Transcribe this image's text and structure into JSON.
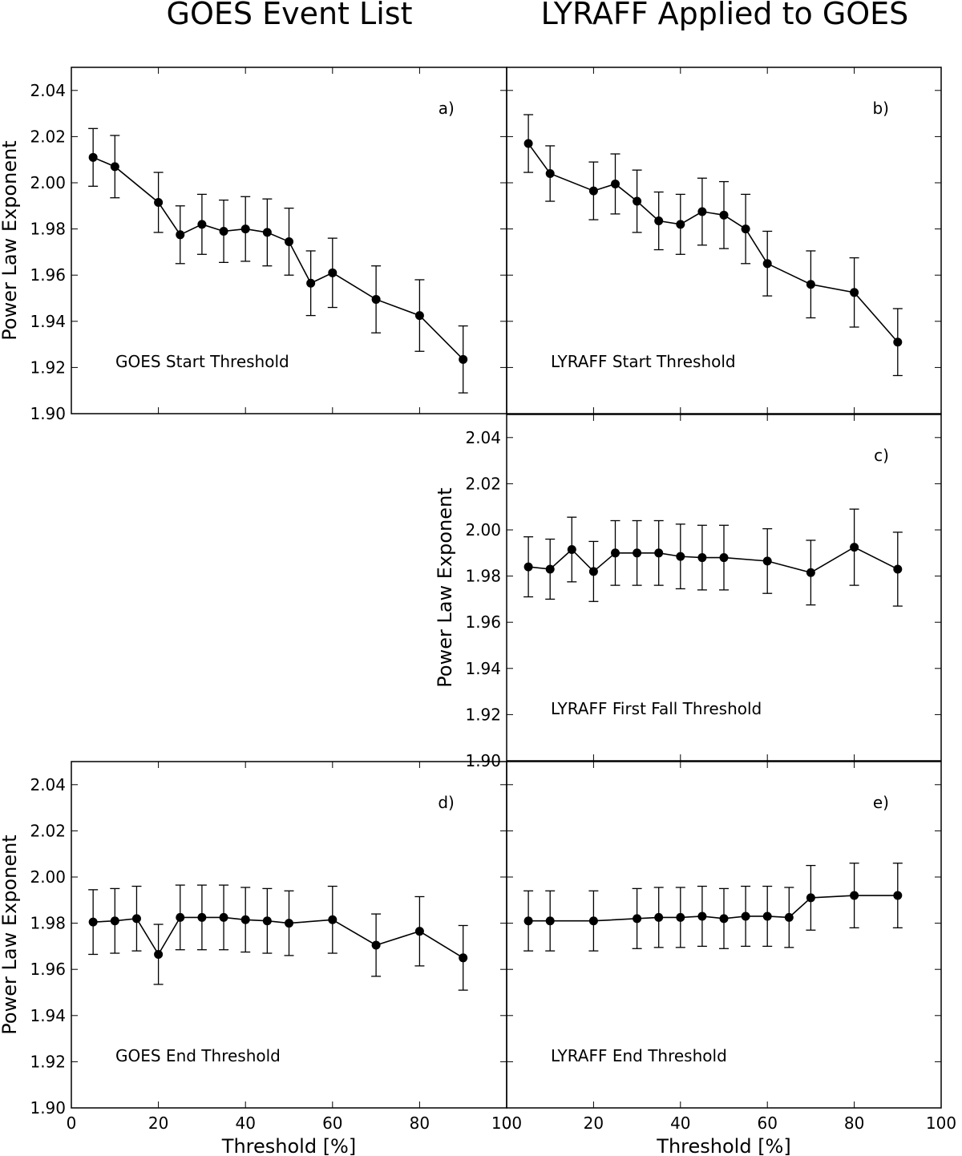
{
  "column_titles": [
    "GOES Event List",
    "LYRAFF Applied to GOES"
  ],
  "colors": {
    "line": "#000000",
    "background": "#ffffff"
  },
  "chart_data": [
    {
      "id": "a",
      "type": "line",
      "panel_label": "a)",
      "annotation": "GOES Start Threshold",
      "ylabel": "Power Law Exponent",
      "xlabel": "",
      "xlim": [
        0,
        100
      ],
      "ylim": [
        1.9,
        2.05
      ],
      "yticks": [
        "1.90",
        "1.92",
        "1.94",
        "1.96",
        "1.98",
        "2.00",
        "2.02",
        "2.04"
      ],
      "xticks": [],
      "x": [
        5,
        10,
        20,
        25,
        30,
        35,
        40,
        45,
        50,
        55,
        60,
        70,
        80,
        90
      ],
      "y": [
        2.011,
        2.007,
        1.9915,
        1.9775,
        1.982,
        1.979,
        1.98,
        1.9785,
        1.9745,
        1.9565,
        1.961,
        1.9495,
        1.9425,
        1.9235
      ],
      "yerr": [
        0.0125,
        0.0135,
        0.013,
        0.0125,
        0.013,
        0.0135,
        0.014,
        0.0145,
        0.0145,
        0.014,
        0.015,
        0.0145,
        0.0155,
        0.0145
      ]
    },
    {
      "id": "b",
      "type": "line",
      "panel_label": "b)",
      "annotation": "LYRAFF Start Threshold",
      "ylabel": "",
      "xlabel": "",
      "xlim": [
        0,
        100
      ],
      "ylim": [
        1.9,
        2.05
      ],
      "yticks": [],
      "xticks": [],
      "x": [
        5,
        10,
        20,
        25,
        30,
        35,
        40,
        45,
        50,
        55,
        60,
        70,
        80,
        90
      ],
      "y": [
        2.017,
        2.004,
        1.9965,
        1.9995,
        1.992,
        1.9835,
        1.982,
        1.9875,
        1.986,
        1.98,
        1.965,
        1.956,
        1.9525,
        1.931
      ],
      "yerr": [
        0.0125,
        0.012,
        0.0125,
        0.013,
        0.0135,
        0.0125,
        0.013,
        0.0145,
        0.0145,
        0.015,
        0.014,
        0.0145,
        0.015,
        0.0145
      ]
    },
    {
      "id": "c",
      "type": "line",
      "panel_label": "c)",
      "annotation": "LYRAFF First Fall Threshold",
      "ylabel": "Power Law Exponent",
      "xlabel": "",
      "xlim": [
        0,
        100
      ],
      "ylim": [
        1.9,
        2.05
      ],
      "yticks": [
        "1.90",
        "1.92",
        "1.94",
        "1.96",
        "1.98",
        "2.00",
        "2.02",
        "2.04"
      ],
      "xticks": [],
      "x": [
        5,
        10,
        15,
        20,
        25,
        30,
        35,
        40,
        45,
        50,
        60,
        70,
        80,
        90
      ],
      "y": [
        1.984,
        1.983,
        1.9915,
        1.982,
        1.99,
        1.99,
        1.99,
        1.9885,
        1.988,
        1.988,
        1.9865,
        1.9815,
        1.9925,
        1.983
      ],
      "yerr": [
        0.013,
        0.013,
        0.014,
        0.013,
        0.014,
        0.014,
        0.014,
        0.014,
        0.014,
        0.014,
        0.014,
        0.014,
        0.0165,
        0.016
      ]
    },
    {
      "id": "d",
      "type": "line",
      "panel_label": "d)",
      "annotation": "GOES End Threshold",
      "ylabel": "Power Law Exponent",
      "xlabel": "Threshold [%]",
      "xlim": [
        0,
        100
      ],
      "ylim": [
        1.9,
        2.05
      ],
      "yticks": [
        "1.90",
        "1.92",
        "1.94",
        "1.96",
        "1.98",
        "2.00",
        "2.02",
        "2.04"
      ],
      "xticks": [
        "0",
        "20",
        "40",
        "60",
        "80",
        "100"
      ],
      "x": [
        5,
        10,
        15,
        20,
        25,
        30,
        35,
        40,
        45,
        50,
        60,
        70,
        80,
        90
      ],
      "y": [
        1.9805,
        1.981,
        1.982,
        1.9665,
        1.9825,
        1.9825,
        1.9825,
        1.9815,
        1.981,
        1.98,
        1.9815,
        1.9705,
        1.9765,
        1.965
      ],
      "yerr": [
        0.014,
        0.014,
        0.014,
        0.013,
        0.014,
        0.014,
        0.014,
        0.014,
        0.014,
        0.014,
        0.0145,
        0.0135,
        0.015,
        0.014
      ]
    },
    {
      "id": "e",
      "type": "line",
      "panel_label": "e)",
      "annotation": "LYRAFF End Threshold",
      "ylabel": "",
      "xlabel": "Threshold [%]",
      "xlim": [
        0,
        100
      ],
      "ylim": [
        1.9,
        2.05
      ],
      "yticks": [],
      "xticks": [
        "0",
        "20",
        "40",
        "60",
        "80",
        "100"
      ],
      "x": [
        5,
        10,
        20,
        30,
        35,
        40,
        45,
        50,
        55,
        60,
        65,
        70,
        80,
        90
      ],
      "y": [
        1.981,
        1.981,
        1.981,
        1.982,
        1.9825,
        1.9825,
        1.983,
        1.982,
        1.983,
        1.983,
        1.9825,
        1.991,
        1.992,
        1.992
      ],
      "yerr": [
        0.013,
        0.013,
        0.013,
        0.013,
        0.013,
        0.013,
        0.013,
        0.013,
        0.013,
        0.013,
        0.013,
        0.014,
        0.014,
        0.014
      ]
    }
  ]
}
